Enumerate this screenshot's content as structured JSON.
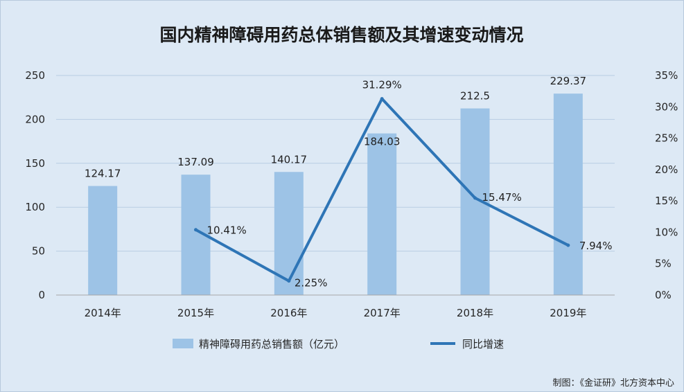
{
  "chart_data": {
    "type": "bar+line",
    "title": "国内精神障碍用药总体销售额及其增速变动情况",
    "categories": [
      "2014年",
      "2015年",
      "2016年",
      "2017年",
      "2018年",
      "2019年"
    ],
    "series": [
      {
        "name": "精神障碍用药总销售额（亿元）",
        "type": "bar",
        "axis": "left",
        "values": [
          124.17,
          137.09,
          140.17,
          184.03,
          212.5,
          229.37
        ],
        "labels": [
          "124.17",
          "137.09",
          "140.17",
          "184.03",
          "212.5",
          "229.37"
        ],
        "color": "#9dc3e6"
      },
      {
        "name": "同比增速",
        "type": "line",
        "axis": "right",
        "values": [
          null,
          10.41,
          2.25,
          31.29,
          15.47,
          7.94
        ],
        "labels": [
          "",
          "10.41%",
          "2.25%",
          "31.29%",
          "15.47%",
          "7.94%"
        ],
        "color": "#2e75b6"
      }
    ],
    "y_left": {
      "min": 0,
      "max": 250,
      "ticks": [
        "0",
        "50",
        "100",
        "150",
        "200",
        "250"
      ]
    },
    "y_right": {
      "min": 0,
      "max": 35,
      "ticks": [
        "0%",
        "5%",
        "10%",
        "15%",
        "20%",
        "25%",
        "30%",
        "35%"
      ]
    },
    "grid": true,
    "legend_position": "bottom",
    "background": "#dde9f5",
    "gridline_color": "#b8cde3"
  },
  "credit": "制图：《金证研》北方资本中心"
}
